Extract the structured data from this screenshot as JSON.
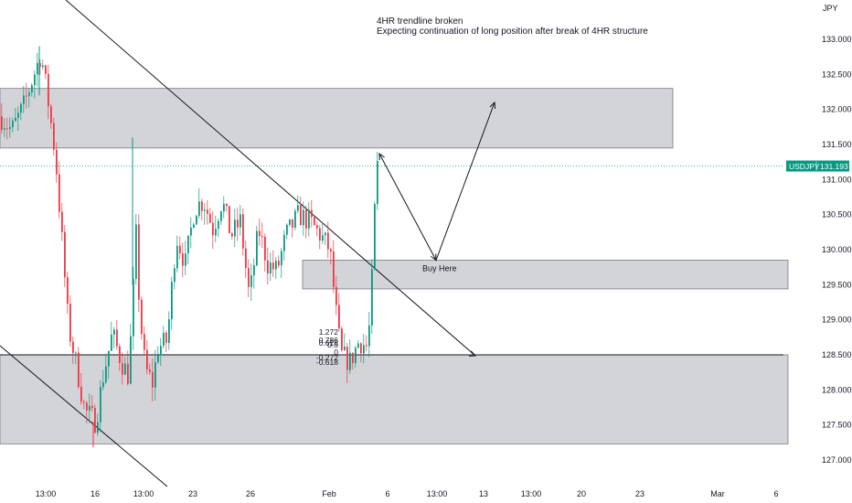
{
  "chart_data": {
    "type": "candlestick",
    "symbol": "USDJPY",
    "currency": "JPY",
    "last_price": 131.193,
    "ylim": [
      126.96,
      133.4
    ],
    "y_ticks": [
      "133.000",
      "132.500",
      "132.000",
      "131.500",
      "131.000",
      "130.500",
      "130.000",
      "129.500",
      "129.000",
      "128.500",
      "128.000",
      "127.500",
      "127.000"
    ],
    "x_ticks": [
      "13:00",
      "16",
      "13:00",
      "23",
      "26",
      "Feb",
      "6",
      "13:00",
      "13",
      "13:00",
      "20",
      "23",
      "Mar",
      "6"
    ],
    "annotation_lines": [
      "4HR trendline broken",
      "Expecting continuation of long position after break of 4HR structure"
    ],
    "zones": [
      {
        "name": "supply zone",
        "low": 131.45,
        "high": 132.3
      },
      {
        "name": "buy zone",
        "low": 129.44,
        "high": 129.85,
        "label": "Buy Here"
      },
      {
        "name": "demand zone",
        "low": 127.23,
        "high": 128.5
      }
    ],
    "support_level": 128.5,
    "fib_labels": [
      "1.272",
      "0.786",
      "0.618",
      "0.5",
      "0",
      "-0.272",
      "-0.618"
    ],
    "projection_path": [
      131.37,
      129.85,
      132.1
    ],
    "colors": {
      "up": "#089981",
      "down": "#f23645",
      "zone": "#d1d4dc",
      "price_tag": "#089981",
      "line": "#131722"
    }
  }
}
